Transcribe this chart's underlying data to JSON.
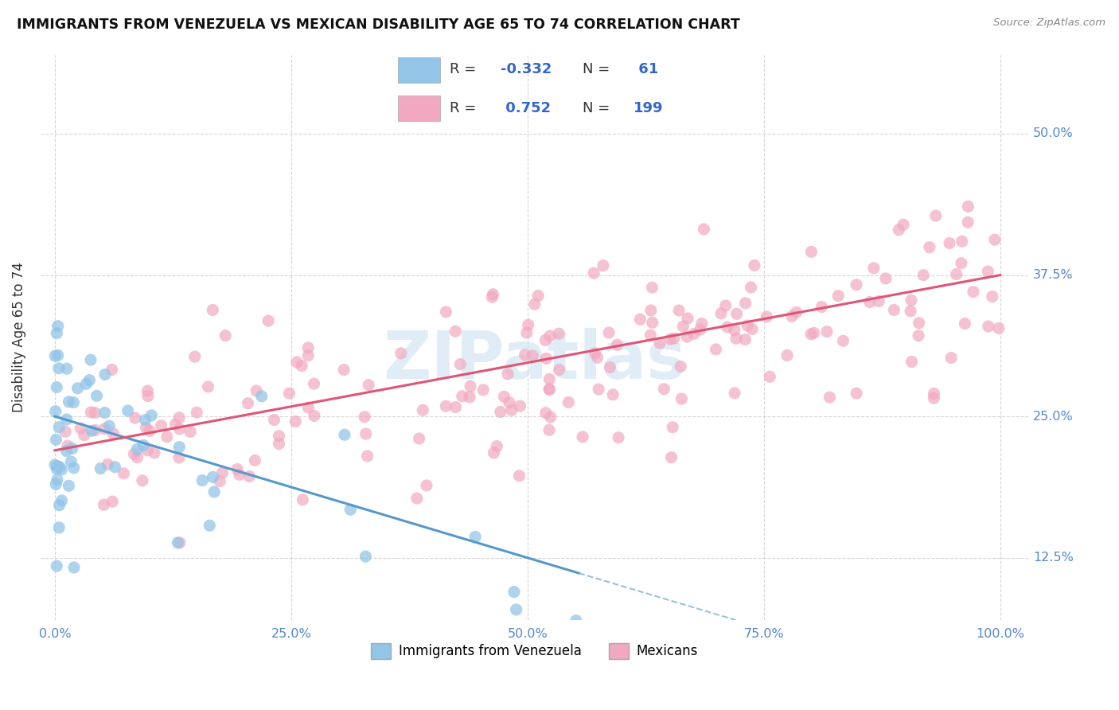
{
  "title": "IMMIGRANTS FROM VENEZUELA VS MEXICAN DISABILITY AGE 65 TO 74 CORRELATION CHART",
  "source_text": "Source: ZipAtlas.com",
  "ylabel": "Disability Age 65 to 74",
  "legend_label1": "Immigrants from Venezuela",
  "legend_label2": "Mexicans",
  "r1": -0.332,
  "n1": 61,
  "r2": 0.752,
  "n2": 199,
  "color1": "#92C5E8",
  "color2": "#F2A8C0",
  "line_color1": "#5599CC",
  "line_color2": "#E05575",
  "background_color": "#ffffff",
  "grid_color": "#cccccc",
  "tick_color": "#5588CC",
  "title_color": "#111111",
  "legend_text_color": "#3366CC",
  "watermark_color": "#C8DFF0",
  "seed1": 17,
  "seed2": 99
}
